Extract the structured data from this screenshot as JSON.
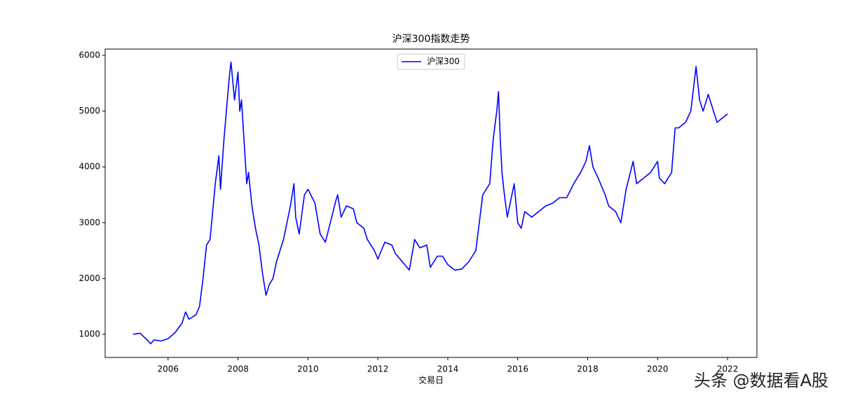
{
  "chart_data": {
    "type": "line",
    "title": "沪深300指数走势",
    "xlabel": "交易日",
    "watermark": "头条 @数据看A股",
    "legend": "upper center",
    "x": [
      2005.0,
      2005.2,
      2005.4,
      2005.5,
      2005.6,
      2005.8,
      2006.0,
      2006.2,
      2006.4,
      2006.5,
      2006.6,
      2006.8,
      2006.9,
      2007.0,
      2007.1,
      2007.2,
      2007.35,
      2007.45,
      2007.5,
      2007.6,
      2007.75,
      2007.8,
      2007.9,
      2008.0,
      2008.05,
      2008.1,
      2008.2,
      2008.25,
      2008.3,
      2008.4,
      2008.5,
      2008.6,
      2008.7,
      2008.8,
      2008.9,
      2009.0,
      2009.1,
      2009.3,
      2009.5,
      2009.6,
      2009.65,
      2009.75,
      2009.9,
      2010.0,
      2010.2,
      2010.35,
      2010.5,
      2010.6,
      2010.8,
      2010.85,
      2010.95,
      2011.1,
      2011.3,
      2011.4,
      2011.6,
      2011.7,
      2011.9,
      2012.0,
      2012.2,
      2012.4,
      2012.5,
      2012.7,
      2012.9,
      2013.05,
      2013.2,
      2013.4,
      2013.5,
      2013.7,
      2013.85,
      2014.0,
      2014.2,
      2014.4,
      2014.6,
      2014.7,
      2014.8,
      2014.9,
      2015.0,
      2015.2,
      2015.3,
      2015.4,
      2015.45,
      2015.5,
      2015.55,
      2015.6,
      2015.7,
      2015.8,
      2015.9,
      2016.0,
      2016.1,
      2016.2,
      2016.4,
      2016.6,
      2016.8,
      2017.0,
      2017.2,
      2017.4,
      2017.6,
      2017.8,
      2017.95,
      2018.05,
      2018.15,
      2018.3,
      2018.5,
      2018.6,
      2018.8,
      2018.95,
      2019.1,
      2019.3,
      2019.4,
      2019.6,
      2019.8,
      2020.0,
      2020.05,
      2020.2,
      2020.4,
      2020.5,
      2020.6,
      2020.8,
      2020.95,
      2021.1,
      2021.2,
      2021.3,
      2021.45,
      2021.6,
      2021.7,
      2021.9,
      2022.0
    ],
    "series": [
      {
        "name": "沪深300",
        "color": "#0000ff",
        "values": [
          1000,
          1020,
          900,
          830,
          900,
          880,
          920,
          1030,
          1200,
          1400,
          1270,
          1350,
          1500,
          2000,
          2600,
          2700,
          3700,
          4200,
          3600,
          4500,
          5600,
          5880,
          5200,
          5700,
          5000,
          5200,
          4200,
          3700,
          3900,
          3300,
          2900,
          2600,
          2100,
          1700,
          1900,
          2000,
          2300,
          2700,
          3300,
          3700,
          3100,
          2800,
          3500,
          3600,
          3350,
          2800,
          2650,
          2900,
          3400,
          3500,
          3100,
          3300,
          3250,
          3000,
          2900,
          2700,
          2500,
          2350,
          2650,
          2600,
          2450,
          2300,
          2150,
          2700,
          2550,
          2600,
          2200,
          2400,
          2400,
          2250,
          2150,
          2170,
          2300,
          2400,
          2500,
          3000,
          3500,
          3700,
          4500,
          5000,
          5350,
          4500,
          3900,
          3600,
          3100,
          3400,
          3700,
          3000,
          2900,
          3200,
          3100,
          3200,
          3300,
          3350,
          3450,
          3450,
          3700,
          3900,
          4100,
          4380,
          4000,
          3800,
          3500,
          3300,
          3200,
          3000,
          3600,
          4100,
          3700,
          3800,
          3900,
          4100,
          3800,
          3700,
          3900,
          4700,
          4700,
          4800,
          5000,
          5800,
          5200,
          5000,
          5300,
          5000,
          4800,
          4900,
          4950
        ]
      }
    ],
    "xlim": [
      2004.2,
      2022.84
    ],
    "xticks": [
      2006,
      2008,
      2010,
      2012,
      2014,
      2016,
      2018,
      2020,
      2022
    ],
    "ylim": [
      585,
      6113
    ],
    "yticks": [
      1000,
      2000,
      3000,
      4000,
      5000,
      6000
    ],
    "grid": false
  }
}
